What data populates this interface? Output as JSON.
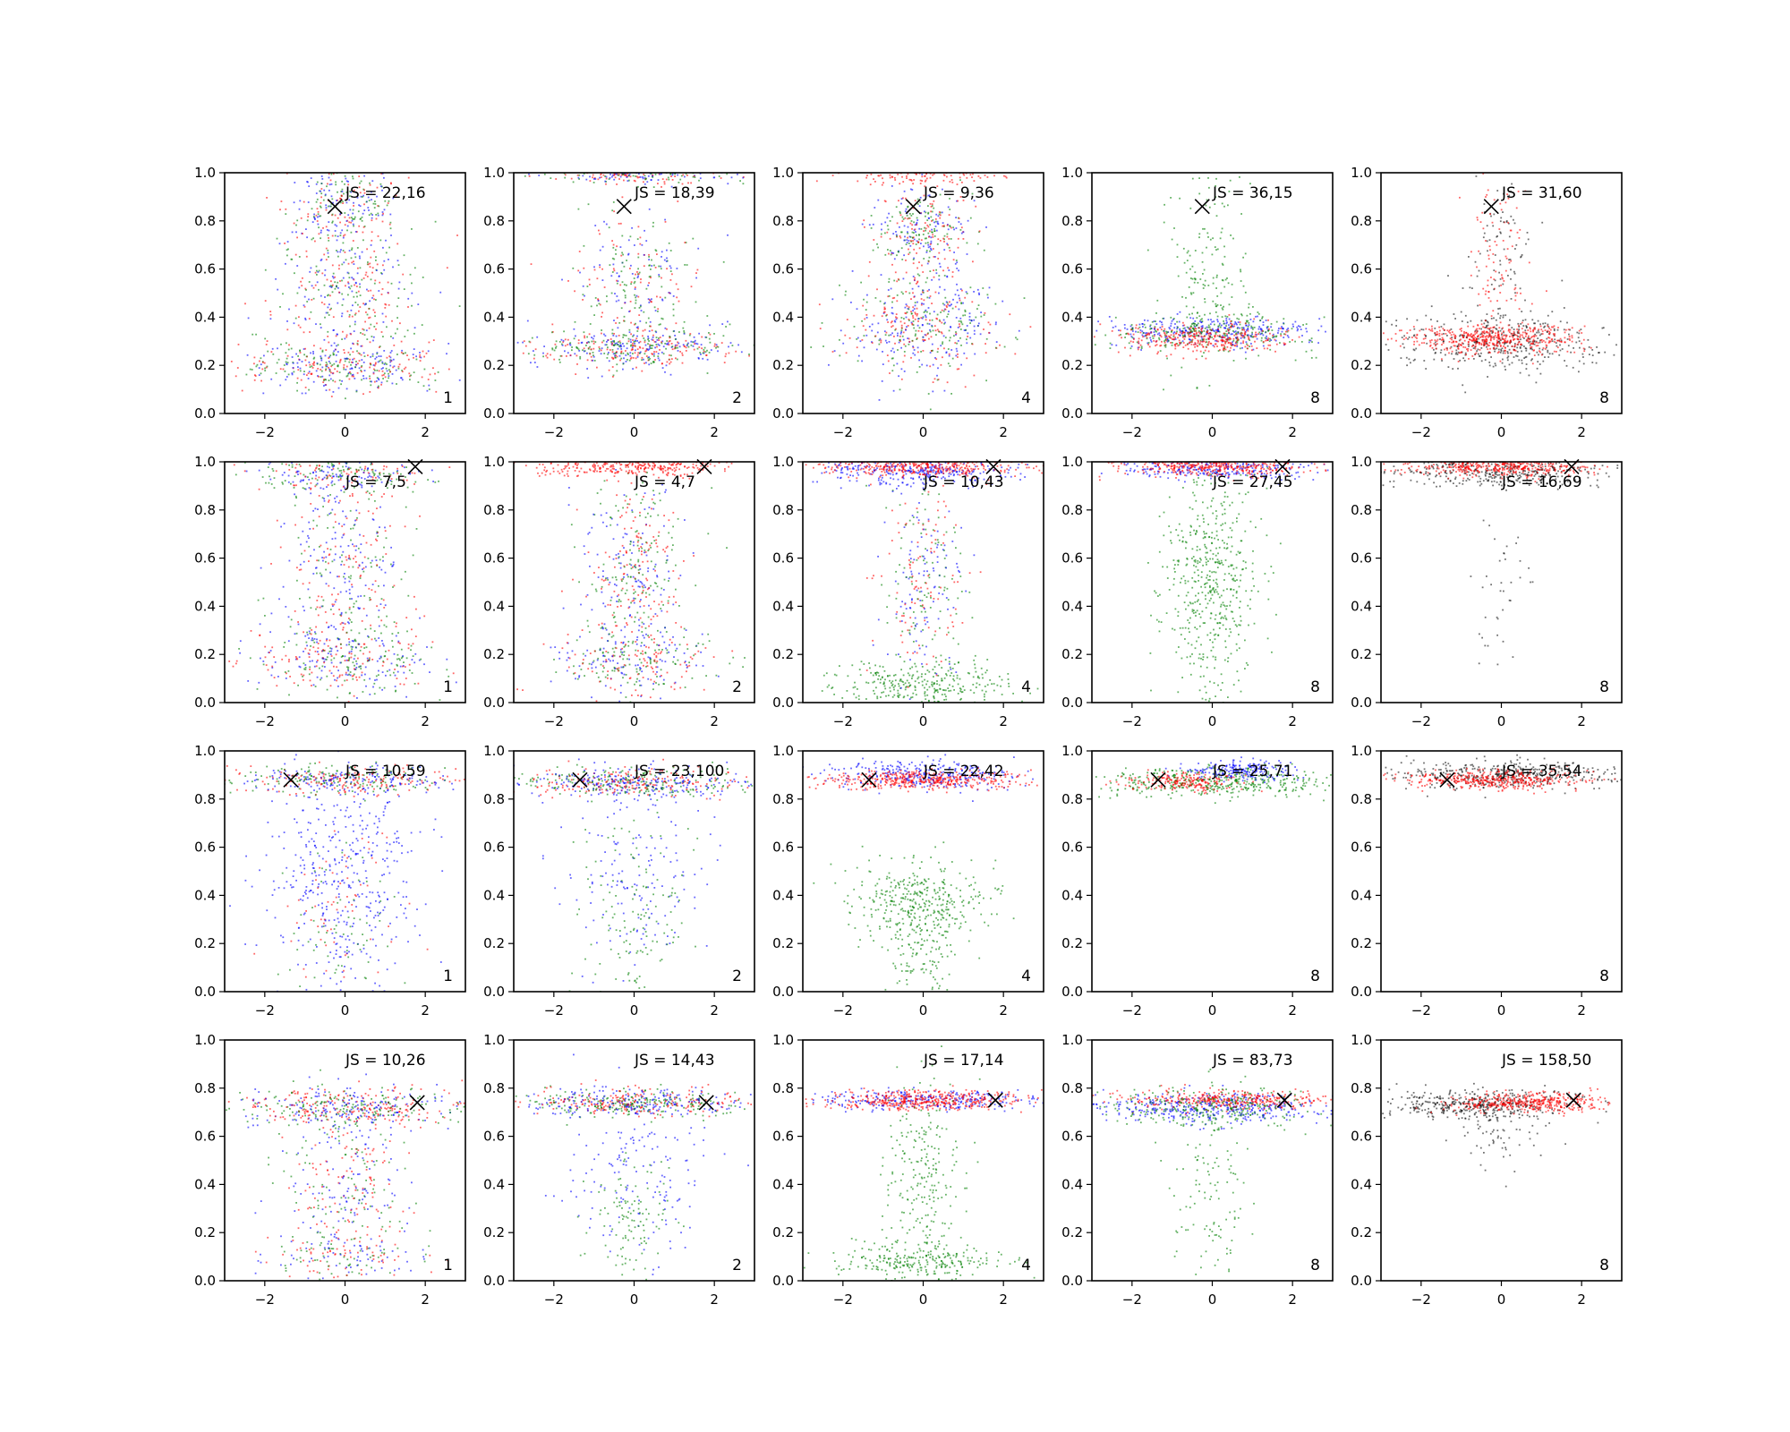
{
  "chart_data": {
    "type": "scatter",
    "rows": 4,
    "cols": 5,
    "xlim": [
      -3,
      3
    ],
    "ylim": [
      0,
      1
    ],
    "xticks": [
      "−2",
      "0",
      "2"
    ],
    "yticks": [
      "0.0",
      "0.2",
      "0.4",
      "0.6",
      "0.8",
      "1.0"
    ],
    "grid": false,
    "marker": {
      "symbol": "x",
      "color": "#000000"
    },
    "series_colors": {
      "blue": "#0000ff",
      "green": "#008000",
      "red": "#ff0000",
      "black": "#000000"
    },
    "panels": [
      {
        "row": 0,
        "col": 0,
        "js_label": "JS = 22,16",
        "corner_label": "1",
        "marker": [
          -0.25,
          0.86
        ],
        "colors": [
          "blue",
          "green",
          "red"
        ],
        "clusters": [
          {
            "c": "mix",
            "cx": 0,
            "cy": 0.2,
            "sx": 1.3,
            "sy": 0.05,
            "n": 420
          },
          {
            "c": "mix",
            "cx": 0,
            "cy": 0.5,
            "sx": 0.9,
            "sy": 0.15,
            "n": 380
          },
          {
            "c": "mix",
            "cx": 0,
            "cy": 0.88,
            "sx": 0.7,
            "sy": 0.1,
            "n": 300
          }
        ]
      },
      {
        "row": 0,
        "col": 1,
        "js_label": "JS = 18,39",
        "corner_label": "2",
        "marker": [
          -0.25,
          0.86
        ],
        "colors": [
          "blue",
          "green",
          "red"
        ],
        "clusters": [
          {
            "c": "mix",
            "cx": 0,
            "cy": 0.27,
            "sx": 1.3,
            "sy": 0.04,
            "n": 480
          },
          {
            "c": "mix",
            "cx": 0,
            "cy": 0.55,
            "sx": 0.8,
            "sy": 0.15,
            "n": 300
          },
          {
            "c": "mix",
            "cx": 0,
            "cy": 0.99,
            "sx": 1.3,
            "sy": 0.02,
            "n": 260
          }
        ]
      },
      {
        "row": 0,
        "col": 2,
        "js_label": "JS = 9,36",
        "corner_label": "4",
        "marker": [
          -0.25,
          0.86
        ],
        "colors": [
          "blue",
          "green",
          "red"
        ],
        "clusters": [
          {
            "c": "mix",
            "cx": 0,
            "cy": 0.36,
            "sx": 0.9,
            "sy": 0.1,
            "n": 520
          },
          {
            "c": "mix",
            "cx": 0,
            "cy": 0.75,
            "sx": 0.6,
            "sy": 0.1,
            "n": 360
          },
          {
            "c": "red",
            "cx": 0,
            "cy": 0.99,
            "sx": 1.0,
            "sy": 0.02,
            "n": 120
          }
        ]
      },
      {
        "row": 0,
        "col": 3,
        "js_label": "JS = 36,15",
        "corner_label": "8",
        "marker": [
          -0.25,
          0.86
        ],
        "colors": [
          "blue",
          "green",
          "red"
        ],
        "clusters": [
          {
            "c": "blue",
            "cx": 0,
            "cy": 0.34,
            "sx": 1.4,
            "sy": 0.03,
            "n": 320
          },
          {
            "c": "green",
            "cx": 0,
            "cy": 0.34,
            "sx": 1.3,
            "sy": 0.04,
            "n": 260
          },
          {
            "c": "red",
            "cx": -0.3,
            "cy": 0.31,
            "sx": 1.0,
            "sy": 0.03,
            "n": 320
          },
          {
            "c": "green",
            "cx": 0,
            "cy": 0.6,
            "sx": 0.5,
            "sy": 0.25,
            "n": 160
          }
        ]
      },
      {
        "row": 0,
        "col": 4,
        "js_label": "JS = 31,60",
        "corner_label": "8",
        "marker": [
          -0.25,
          0.86
        ],
        "colors": [
          "black",
          "red"
        ],
        "clusters": [
          {
            "c": "black",
            "cx": 0,
            "cy": 0.3,
            "sx": 1.3,
            "sy": 0.06,
            "n": 420
          },
          {
            "c": "red",
            "cx": -0.3,
            "cy": 0.31,
            "sx": 1.1,
            "sy": 0.03,
            "n": 480
          },
          {
            "c": "mix",
            "cx": 0,
            "cy": 0.65,
            "sx": 0.4,
            "sy": 0.18,
            "n": 180
          }
        ]
      },
      {
        "row": 1,
        "col": 0,
        "js_label": "JS = 7,5",
        "corner_label": "1",
        "marker": [
          1.75,
          0.98
        ],
        "colors": [
          "blue",
          "green",
          "red"
        ],
        "clusters": [
          {
            "c": "mix",
            "cx": 0,
            "cy": 0.18,
            "sx": 1.2,
            "sy": 0.07,
            "n": 360
          },
          {
            "c": "mix",
            "cx": 0,
            "cy": 0.55,
            "sx": 0.8,
            "sy": 0.22,
            "n": 420
          },
          {
            "c": "mix",
            "cx": 0,
            "cy": 0.95,
            "sx": 1.1,
            "sy": 0.04,
            "n": 300
          }
        ]
      },
      {
        "row": 1,
        "col": 1,
        "js_label": "JS = 4,7",
        "corner_label": "2",
        "marker": [
          1.75,
          0.98
        ],
        "colors": [
          "blue",
          "green",
          "red"
        ],
        "clusters": [
          {
            "c": "mix",
            "cx": 0,
            "cy": 0.18,
            "sx": 0.9,
            "sy": 0.08,
            "n": 340
          },
          {
            "c": "mix",
            "cx": 0,
            "cy": 0.55,
            "sx": 0.6,
            "sy": 0.2,
            "n": 420
          },
          {
            "c": "red",
            "cx": 0,
            "cy": 0.98,
            "sx": 1.2,
            "sy": 0.02,
            "n": 320
          }
        ]
      },
      {
        "row": 1,
        "col": 2,
        "js_label": "JS = 10,43",
        "corner_label": "4",
        "marker": [
          1.75,
          0.98
        ],
        "colors": [
          "blue",
          "green",
          "red"
        ],
        "clusters": [
          {
            "c": "green",
            "cx": 0,
            "cy": 0.08,
            "sx": 1.1,
            "sy": 0.05,
            "n": 300
          },
          {
            "c": "mix",
            "cx": 0,
            "cy": 0.5,
            "sx": 0.5,
            "sy": 0.2,
            "n": 320
          },
          {
            "c": "blue",
            "cx": 0,
            "cy": 0.96,
            "sx": 1.3,
            "sy": 0.03,
            "n": 320
          },
          {
            "c": "red",
            "cx": 0,
            "cy": 0.98,
            "sx": 1.2,
            "sy": 0.02,
            "n": 360
          }
        ]
      },
      {
        "row": 1,
        "col": 3,
        "js_label": "JS = 27,45",
        "corner_label": "8",
        "marker": [
          1.75,
          0.98
        ],
        "colors": [
          "blue",
          "green",
          "red"
        ],
        "clusters": [
          {
            "c": "green",
            "cx": 0,
            "cy": 0.5,
            "sx": 0.6,
            "sy": 0.25,
            "n": 520
          },
          {
            "c": "blue",
            "cx": 0,
            "cy": 0.97,
            "sx": 1.4,
            "sy": 0.02,
            "n": 280
          },
          {
            "c": "red",
            "cx": 0,
            "cy": 0.98,
            "sx": 1.1,
            "sy": 0.02,
            "n": 380
          }
        ]
      },
      {
        "row": 1,
        "col": 4,
        "js_label": "JS = 16,69",
        "corner_label": "8",
        "marker": [
          1.75,
          0.98
        ],
        "colors": [
          "black",
          "red"
        ],
        "clusters": [
          {
            "c": "black",
            "cx": 0,
            "cy": 0.96,
            "sx": 1.4,
            "sy": 0.03,
            "n": 380
          },
          {
            "c": "red",
            "cx": 0,
            "cy": 0.98,
            "sx": 1.1,
            "sy": 0.02,
            "n": 420
          },
          {
            "c": "black",
            "cx": 0,
            "cy": 0.45,
            "sx": 0.4,
            "sy": 0.2,
            "n": 40
          }
        ]
      },
      {
        "row": 2,
        "col": 0,
        "js_label": "JS = 10,59",
        "corner_label": "1",
        "marker": [
          -1.35,
          0.88
        ],
        "colors": [
          "blue",
          "green",
          "red"
        ],
        "clusters": [
          {
            "c": "mix",
            "cx": 0,
            "cy": 0.88,
            "sx": 1.5,
            "sy": 0.03,
            "n": 480
          },
          {
            "c": "blue",
            "cx": 0,
            "cy": 0.5,
            "sx": 1.0,
            "sy": 0.25,
            "n": 360
          },
          {
            "c": "mix",
            "cx": 0,
            "cy": 0.3,
            "sx": 0.8,
            "sy": 0.2,
            "n": 200
          }
        ]
      },
      {
        "row": 2,
        "col": 1,
        "js_label": "JS = 23,100",
        "corner_label": "2",
        "marker": [
          -1.35,
          0.88
        ],
        "colors": [
          "blue",
          "green",
          "red"
        ],
        "clusters": [
          {
            "c": "mix",
            "cx": 0,
            "cy": 0.87,
            "sx": 1.5,
            "sy": 0.03,
            "n": 620
          },
          {
            "c": "blue",
            "cx": 0,
            "cy": 0.5,
            "sx": 1.0,
            "sy": 0.22,
            "n": 160
          },
          {
            "c": "green",
            "cx": 0,
            "cy": 0.3,
            "sx": 0.6,
            "sy": 0.2,
            "n": 140
          }
        ]
      },
      {
        "row": 2,
        "col": 2,
        "js_label": "JS = 22,42",
        "corner_label": "4",
        "marker": [
          -1.35,
          0.88
        ],
        "colors": [
          "blue",
          "green",
          "red"
        ],
        "clusters": [
          {
            "c": "blue",
            "cx": 0,
            "cy": 0.9,
            "sx": 1.2,
            "sy": 0.03,
            "n": 320
          },
          {
            "c": "red",
            "cx": 0,
            "cy": 0.88,
            "sx": 1.3,
            "sy": 0.02,
            "n": 420
          },
          {
            "c": "green",
            "cx": 0,
            "cy": 0.38,
            "sx": 0.9,
            "sy": 0.08,
            "n": 360
          },
          {
            "c": "green",
            "cx": 0,
            "cy": 0.15,
            "sx": 0.5,
            "sy": 0.1,
            "n": 120
          }
        ]
      },
      {
        "row": 2,
        "col": 3,
        "js_label": "JS = 25,71",
        "corner_label": "8",
        "marker": [
          -1.35,
          0.88
        ],
        "colors": [
          "blue",
          "green",
          "red"
        ],
        "clusters": [
          {
            "c": "green",
            "cx": 0,
            "cy": 0.87,
            "sx": 1.5,
            "sy": 0.03,
            "n": 420
          },
          {
            "c": "blue",
            "cx": 0.8,
            "cy": 0.92,
            "sx": 0.7,
            "sy": 0.02,
            "n": 200
          },
          {
            "c": "red",
            "cx": -0.8,
            "cy": 0.87,
            "sx": 0.7,
            "sy": 0.02,
            "n": 200
          }
        ]
      },
      {
        "row": 2,
        "col": 4,
        "js_label": "JS = 35,54",
        "corner_label": "8",
        "marker": [
          -1.35,
          0.88
        ],
        "colors": [
          "black",
          "red"
        ],
        "clusters": [
          {
            "c": "black",
            "cx": 0,
            "cy": 0.9,
            "sx": 1.5,
            "sy": 0.03,
            "n": 420
          },
          {
            "c": "red",
            "cx": -0.3,
            "cy": 0.88,
            "sx": 1.1,
            "sy": 0.02,
            "n": 420
          }
        ]
      },
      {
        "row": 3,
        "col": 0,
        "js_label": "JS = 10,26",
        "corner_label": "1",
        "marker": [
          1.8,
          0.74
        ],
        "colors": [
          "blue",
          "green",
          "red"
        ],
        "clusters": [
          {
            "c": "mix",
            "cx": 0,
            "cy": 0.72,
            "sx": 1.4,
            "sy": 0.04,
            "n": 520
          },
          {
            "c": "mix",
            "cx": 0,
            "cy": 0.4,
            "sx": 0.8,
            "sy": 0.2,
            "n": 360
          },
          {
            "c": "mix",
            "cx": 0,
            "cy": 0.1,
            "sx": 1.0,
            "sy": 0.06,
            "n": 180
          }
        ]
      },
      {
        "row": 3,
        "col": 1,
        "js_label": "JS = 14,43",
        "corner_label": "2",
        "marker": [
          1.8,
          0.74
        ],
        "colors": [
          "blue",
          "green",
          "red"
        ],
        "clusters": [
          {
            "c": "mix",
            "cx": 0,
            "cy": 0.74,
            "sx": 1.5,
            "sy": 0.03,
            "n": 620
          },
          {
            "c": "blue",
            "cx": 0,
            "cy": 0.45,
            "sx": 1.0,
            "sy": 0.18,
            "n": 160
          },
          {
            "c": "green",
            "cx": 0,
            "cy": 0.25,
            "sx": 0.5,
            "sy": 0.15,
            "n": 120
          }
        ]
      },
      {
        "row": 3,
        "col": 2,
        "js_label": "JS = 17,14",
        "corner_label": "4",
        "marker": [
          1.8,
          0.75
        ],
        "colors": [
          "blue",
          "green",
          "red"
        ],
        "clusters": [
          {
            "c": "blue",
            "cx": 0,
            "cy": 0.75,
            "sx": 1.4,
            "sy": 0.02,
            "n": 300
          },
          {
            "c": "red",
            "cx": 0,
            "cy": 0.75,
            "sx": 1.3,
            "sy": 0.02,
            "n": 420
          },
          {
            "c": "green",
            "cx": 0,
            "cy": 0.45,
            "sx": 0.5,
            "sy": 0.2,
            "n": 220
          },
          {
            "c": "green",
            "cx": 0,
            "cy": 0.08,
            "sx": 1.1,
            "sy": 0.04,
            "n": 260
          }
        ]
      },
      {
        "row": 3,
        "col": 3,
        "js_label": "JS = 83,73",
        "corner_label": "8",
        "marker": [
          1.8,
          0.75
        ],
        "colors": [
          "blue",
          "green",
          "red"
        ],
        "clusters": [
          {
            "c": "blue",
            "cx": 0,
            "cy": 0.72,
            "sx": 1.5,
            "sy": 0.03,
            "n": 420
          },
          {
            "c": "red",
            "cx": 0.4,
            "cy": 0.75,
            "sx": 1.2,
            "sy": 0.02,
            "n": 360
          },
          {
            "c": "green",
            "cx": 0,
            "cy": 0.72,
            "sx": 1.3,
            "sy": 0.04,
            "n": 260
          },
          {
            "c": "green",
            "cx": 0,
            "cy": 0.4,
            "sx": 0.5,
            "sy": 0.2,
            "n": 120
          }
        ]
      },
      {
        "row": 3,
        "col": 4,
        "js_label": "JS = 158,50",
        "corner_label": "8",
        "marker": [
          1.8,
          0.75
        ],
        "colors": [
          "black",
          "red"
        ],
        "clusters": [
          {
            "c": "black",
            "cx": -0.6,
            "cy": 0.73,
            "sx": 1.1,
            "sy": 0.03,
            "n": 420
          },
          {
            "c": "red",
            "cx": 0.6,
            "cy": 0.74,
            "sx": 1.0,
            "sy": 0.02,
            "n": 420
          },
          {
            "c": "black",
            "cx": 0,
            "cy": 0.6,
            "sx": 0.6,
            "sy": 0.06,
            "n": 60
          }
        ]
      }
    ]
  }
}
